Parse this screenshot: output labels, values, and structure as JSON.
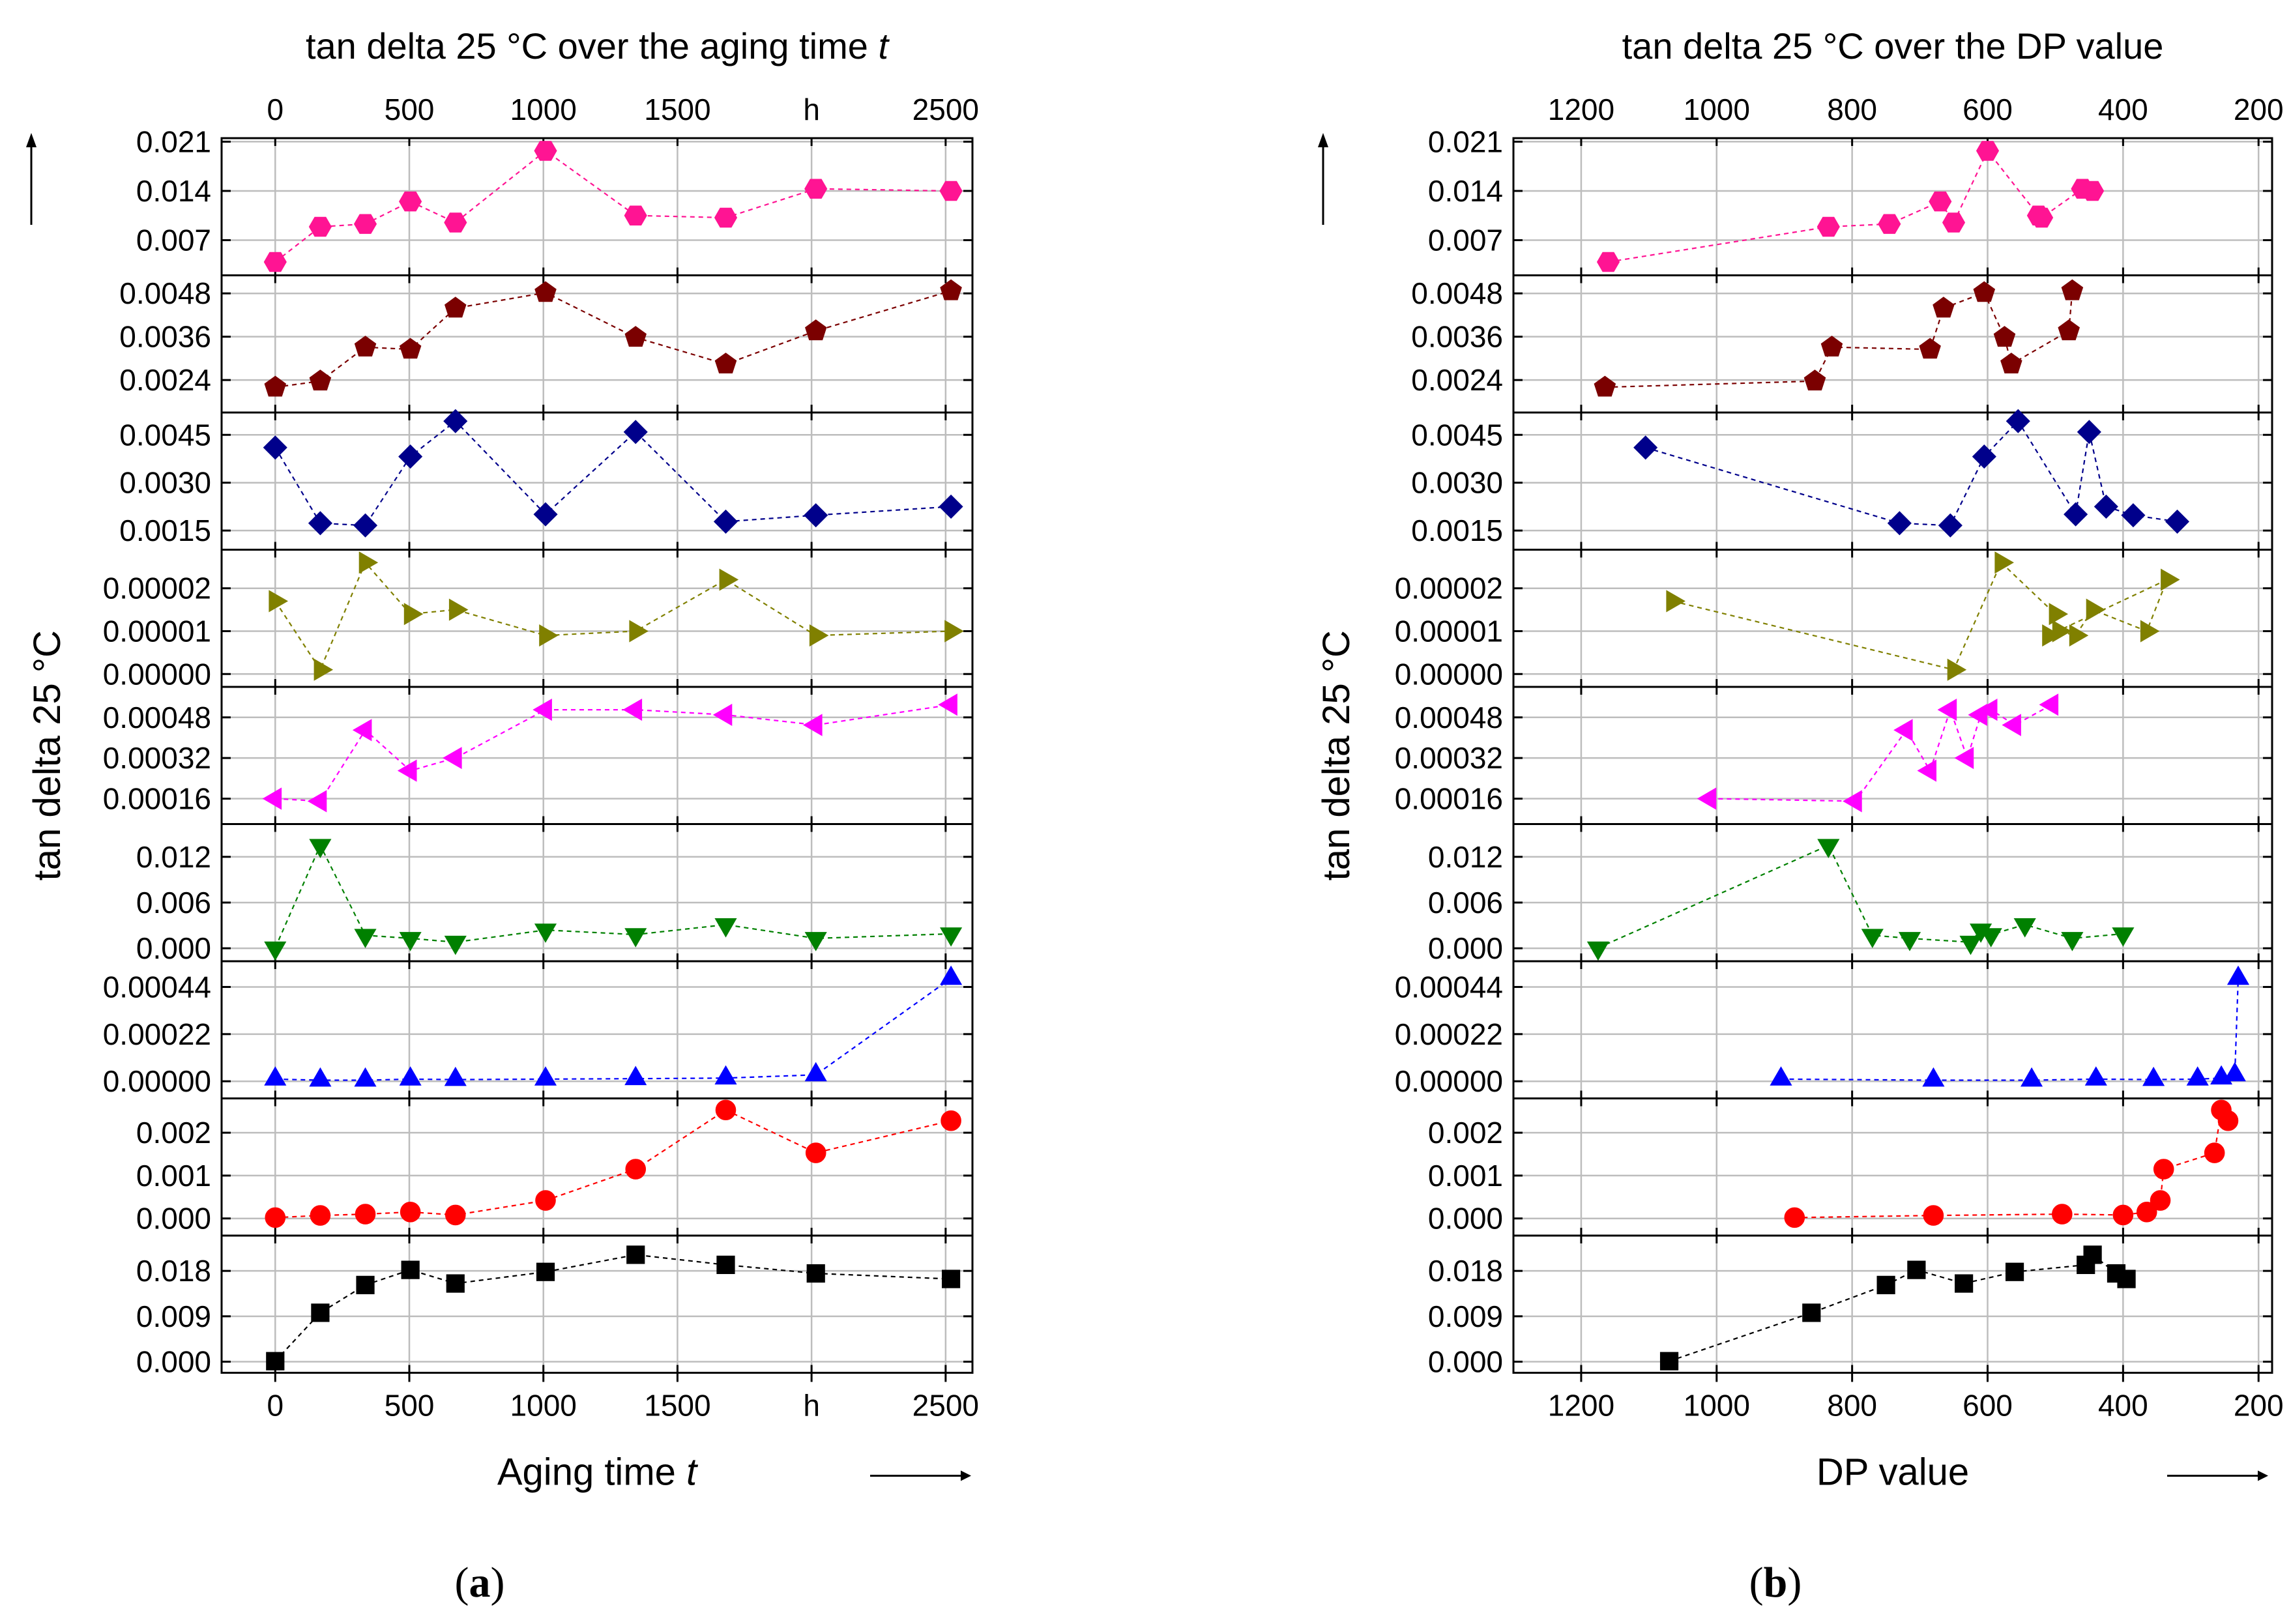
{
  "chart_data": [
    {
      "type": "scatter",
      "panel_id": "a",
      "title": "tan delta 25 °C over the aging time t",
      "title_prefix": "tan delta 25 °C over the aging time ",
      "title_italic": "t",
      "xlabel": "Aging time t",
      "xlabel_prefix": "Aging time ",
      "xlabel_italic": "t",
      "ylabel": "tan delta 25 °C",
      "caption": "(a)",
      "caption_parts": [
        "(",
        "a",
        ")"
      ],
      "xlim": [
        -200,
        2600
      ],
      "x_ticks": [
        0,
        500,
        1000,
        1500,
        2000,
        2500
      ],
      "x_tick_labels": [
        "0",
        "500",
        "1000",
        "1500",
        "h",
        "2500"
      ],
      "series": [
        {
          "name": "s1",
          "color": "#ff1493",
          "marker": "hexagon",
          "ylim": [
            0.002,
            0.0215
          ],
          "y_ticks": [
            0.007,
            0.014,
            0.021
          ],
          "y_tick_labels": [
            "0.007",
            "0.014",
            "0.021"
          ],
          "x": [
            0,
            168,
            336,
            504,
            672,
            1008,
            1344,
            1680,
            2016,
            2520
          ],
          "y": [
            0.0039,
            0.0089,
            0.0093,
            0.0125,
            0.0095,
            0.0197,
            0.0105,
            0.0102,
            0.0143,
            0.014
          ]
        },
        {
          "name": "s2",
          "color": "#7b0000",
          "marker": "pentagon",
          "ylim": [
            0.0015,
            0.0053
          ],
          "y_ticks": [
            0.0024,
            0.0036,
            0.0048
          ],
          "y_tick_labels": [
            "0.0024",
            "0.0036",
            "0.0048"
          ],
          "x": [
            0,
            168,
            336,
            504,
            672,
            1008,
            1344,
            1680,
            2016,
            2520
          ],
          "y": [
            0.0022,
            0.00237,
            0.00331,
            0.00325,
            0.00439,
            0.00482,
            0.00358,
            0.00284,
            0.00376,
            0.00487
          ]
        },
        {
          "name": "s3",
          "color": "#00008b",
          "marker": "diamond",
          "ylim": [
            0.0009,
            0.0052
          ],
          "y_ticks": [
            0.0015,
            0.003,
            0.0045
          ],
          "y_tick_labels": [
            "0.0015",
            "0.0030",
            "0.0045"
          ],
          "x": [
            0,
            168,
            336,
            504,
            672,
            1008,
            1344,
            1680,
            2016,
            2520
          ],
          "y": [
            0.0041,
            0.00173,
            0.00166,
            0.00382,
            0.00493,
            0.00201,
            0.00459,
            0.00178,
            0.00198,
            0.00225
          ]
        },
        {
          "name": "s4",
          "color": "#808000",
          "marker": "triangle-right",
          "ylim": [
            -3e-06,
            2.9e-05
          ],
          "y_ticks": [
            0,
            1e-05,
            2e-05
          ],
          "y_tick_labels": [
            "0.00000",
            "0.00001",
            "0.00002"
          ],
          "x": [
            0,
            168,
            336,
            504,
            672,
            1008,
            1344,
            1680,
            2016,
            2520
          ],
          "y": [
            1.7e-05,
            1e-06,
            2.6e-05,
            1.4e-05,
            1.5e-05,
            9e-06,
            1e-05,
            2.2e-05,
            9e-06,
            1e-05
          ]
        },
        {
          "name": "s5",
          "color": "#ff00ff",
          "marker": "triangle-left",
          "ylim": [
            6e-05,
            0.0006
          ],
          "y_ticks": [
            0.00016,
            0.00032,
            0.00048
          ],
          "y_tick_labels": [
            "0.00016",
            "0.00032",
            "0.00048"
          ],
          "x": [
            0,
            168,
            336,
            504,
            672,
            1008,
            1344,
            1680,
            2016,
            2520
          ],
          "y": [
            0.00016,
            0.00015,
            0.00043,
            0.00027,
            0.00032,
            0.00051,
            0.00051,
            0.00049,
            0.00045,
            0.00053
          ]
        },
        {
          "name": "s6",
          "color": "#008000",
          "marker": "triangle-down",
          "ylim": [
            -0.0017,
            0.0163
          ],
          "y_ticks": [
            0,
            0.006,
            0.012
          ],
          "y_tick_labels": [
            "0.000",
            "0.006",
            "0.012"
          ],
          "x": [
            0,
            168,
            336,
            504,
            672,
            1008,
            1344,
            1680,
            2016,
            2520
          ],
          "y": [
            5e-05,
            0.0135,
            0.0017,
            0.0013,
            0.0008,
            0.0024,
            0.0018,
            0.0031,
            0.0013,
            0.0019
          ]
        },
        {
          "name": "s7",
          "color": "#0000ff",
          "marker": "triangle-up",
          "ylim": [
            -8e-05,
            0.00056
          ],
          "y_ticks": [
            0,
            0.00022,
            0.00044
          ],
          "y_tick_labels": [
            "0.00000",
            "0.00022",
            "0.00044"
          ],
          "x": [
            0,
            168,
            336,
            504,
            672,
            1008,
            1344,
            1680,
            2016,
            2520
          ],
          "y": [
            1e-05,
            5e-06,
            5e-06,
            1e-05,
            8e-06,
            1e-05,
            1.2e-05,
            1.5e-05,
            3e-05,
            0.00048
          ]
        },
        {
          "name": "s8",
          "color": "#ff0000",
          "marker": "circle",
          "ylim": [
            -0.0004,
            0.0028
          ],
          "y_ticks": [
            0,
            0.001,
            0.002
          ],
          "y_tick_labels": [
            "0.000",
            "0.001",
            "0.002"
          ],
          "x": [
            0,
            168,
            336,
            504,
            672,
            1008,
            1344,
            1680,
            2016,
            2520
          ],
          "y": [
            2e-05,
            7e-05,
            0.0001,
            0.00015,
            8e-05,
            0.00042,
            0.00115,
            0.00253,
            0.00153,
            0.00228
          ]
        },
        {
          "name": "s9",
          "color": "#000000",
          "marker": "square",
          "ylim": [
            -0.0022,
            0.025
          ],
          "y_ticks": [
            0,
            0.009,
            0.018
          ],
          "y_tick_labels": [
            "0.000",
            "0.009",
            "0.018"
          ],
          "x": [
            0,
            168,
            336,
            504,
            672,
            1008,
            1344,
            1680,
            2016,
            2520
          ],
          "y": [
            0.0001,
            0.0097,
            0.0152,
            0.0182,
            0.0155,
            0.0178,
            0.0212,
            0.0192,
            0.0175,
            0.0164
          ]
        }
      ]
    },
    {
      "type": "scatter",
      "panel_id": "b",
      "title": "tan delta 25 °C over the DP value",
      "xlabel": "DP value",
      "ylabel": "tan delta 25 °C",
      "caption": "(b)",
      "caption_parts": [
        "(",
        "b",
        ")"
      ],
      "xlim": [
        1300,
        180
      ],
      "x_ticks_bottom": [
        1200,
        1000,
        800,
        600,
        400,
        200
      ],
      "x_tick_labels_bottom": [
        "1200",
        "1000",
        "800",
        "600",
        "400",
        "200"
      ],
      "x_ticks_top": [
        1200,
        1000,
        800,
        600,
        400,
        200
      ],
      "x_tick_labels_top": [
        "1200",
        "1000",
        "800",
        "600",
        "400",
        "200"
      ],
      "series": [
        {
          "name": "s1",
          "color": "#ff1493",
          "marker": "hexagon",
          "ylim": [
            0.002,
            0.0215
          ],
          "y_ticks": [
            0.007,
            0.014,
            0.021
          ],
          "y_tick_labels": [
            "0.007",
            "0.014",
            "0.021"
          ],
          "x": [
            1160,
            835,
            745,
            670,
            650,
            600,
            525,
            520,
            460,
            445
          ],
          "y": [
            0.0039,
            0.0089,
            0.0093,
            0.0125,
            0.0095,
            0.0197,
            0.0105,
            0.0102,
            0.0143,
            0.014
          ]
        },
        {
          "name": "s2",
          "color": "#7b0000",
          "marker": "pentagon",
          "ylim": [
            0.0015,
            0.0053
          ],
          "y_ticks": [
            0.0024,
            0.0036,
            0.0048
          ],
          "y_tick_labels": [
            "0.0024",
            "0.0036",
            "0.0048"
          ],
          "x": [
            1165,
            855,
            830,
            685,
            665,
            605,
            575,
            565,
            480,
            475
          ],
          "y": [
            0.0022,
            0.00237,
            0.00331,
            0.00325,
            0.00439,
            0.00482,
            0.00358,
            0.00284,
            0.00376,
            0.00487
          ]
        },
        {
          "name": "s3",
          "color": "#00008b",
          "marker": "diamond",
          "ylim": [
            0.0009,
            0.0052
          ],
          "y_ticks": [
            0.0015,
            0.003,
            0.0045
          ],
          "y_tick_labels": [
            "0.0015",
            "0.0030",
            "0.0045"
          ],
          "x": [
            1105,
            730,
            655,
            605,
            555,
            470,
            450,
            425,
            385,
            320
          ],
          "y": [
            0.0041,
            0.00173,
            0.00166,
            0.00382,
            0.00493,
            0.00201,
            0.00459,
            0.00225,
            0.00198,
            0.00178
          ]
        },
        {
          "name": "s4",
          "color": "#808000",
          "marker": "triangle-right",
          "ylim": [
            -3e-06,
            2.9e-05
          ],
          "y_ticks": [
            0,
            1e-05,
            2e-05
          ],
          "y_tick_labels": [
            "0.00000",
            "0.00001",
            "0.00002"
          ],
          "x": [
            1065,
            650,
            580,
            500,
            495,
            470,
            445,
            365,
            335,
            510
          ],
          "y": [
            1.7e-05,
            1e-06,
            2.6e-05,
            1.4e-05,
            1e-05,
            9e-06,
            1.5e-05,
            1e-05,
            2.2e-05,
            9e-06
          ]
        },
        {
          "name": "s5",
          "color": "#ff00ff",
          "marker": "triangle-left",
          "ylim": [
            6e-05,
            0.0006
          ],
          "y_ticks": [
            0.00016,
            0.00032,
            0.00048
          ],
          "y_tick_labels": [
            "0.00016",
            "0.00032",
            "0.00048"
          ],
          "x": [
            1010,
            795,
            720,
            685,
            655,
            630,
            610,
            595,
            560,
            505
          ],
          "y": [
            0.00016,
            0.00015,
            0.00043,
            0.00027,
            0.00051,
            0.00032,
            0.00049,
            0.00051,
            0.00045,
            0.00053
          ]
        },
        {
          "name": "s6",
          "color": "#008000",
          "marker": "triangle-down",
          "ylim": [
            -0.0017,
            0.0163
          ],
          "y_ticks": [
            0,
            0.006,
            0.012
          ],
          "y_tick_labels": [
            "0.000",
            "0.006",
            "0.012"
          ],
          "x": [
            1175,
            835,
            770,
            715,
            625,
            610,
            595,
            545,
            475,
            400
          ],
          "y": [
            5e-05,
            0.0135,
            0.0017,
            0.0013,
            0.0008,
            0.0024,
            0.0018,
            0.0031,
            0.0013,
            0.0019
          ]
        },
        {
          "name": "s7",
          "color": "#0000ff",
          "marker": "triangle-up",
          "ylim": [
            -8e-05,
            0.00056
          ],
          "y_ticks": [
            0,
            0.00022,
            0.00044
          ],
          "y_tick_labels": [
            "0.00000",
            "0.00022",
            "0.00044"
          ],
          "x": [
            905,
            680,
            535,
            440,
            355,
            290,
            255,
            235,
            230
          ],
          "y": [
            1e-05,
            5e-06,
            5e-06,
            1e-05,
            8e-06,
            1e-05,
            1.5e-05,
            3e-05,
            0.00048
          ]
        },
        {
          "name": "s8",
          "color": "#ff0000",
          "marker": "circle",
          "ylim": [
            -0.0004,
            0.0028
          ],
          "y_ticks": [
            0,
            0.001,
            0.002
          ],
          "y_tick_labels": [
            "0.000",
            "0.001",
            "0.002"
          ],
          "x": [
            885,
            680,
            490,
            400,
            365,
            345,
            340,
            265,
            255,
            245
          ],
          "y": [
            2e-05,
            7e-05,
            0.0001,
            8e-05,
            0.00015,
            0.00042,
            0.00115,
            0.00153,
            0.00253,
            0.00228
          ]
        },
        {
          "name": "s9",
          "color": "#000000",
          "marker": "square",
          "ylim": [
            -0.0022,
            0.025
          ],
          "y_ticks": [
            0,
            0.009,
            0.018
          ],
          "y_tick_labels": [
            "0.000",
            "0.009",
            "0.018"
          ],
          "x": [
            1070,
            860,
            750,
            705,
            635,
            560,
            455,
            445,
            410,
            395
          ],
          "y": [
            0.0001,
            0.0097,
            0.0152,
            0.0182,
            0.0155,
            0.0178,
            0.0192,
            0.0212,
            0.0175,
            0.0164
          ]
        }
      ]
    }
  ]
}
